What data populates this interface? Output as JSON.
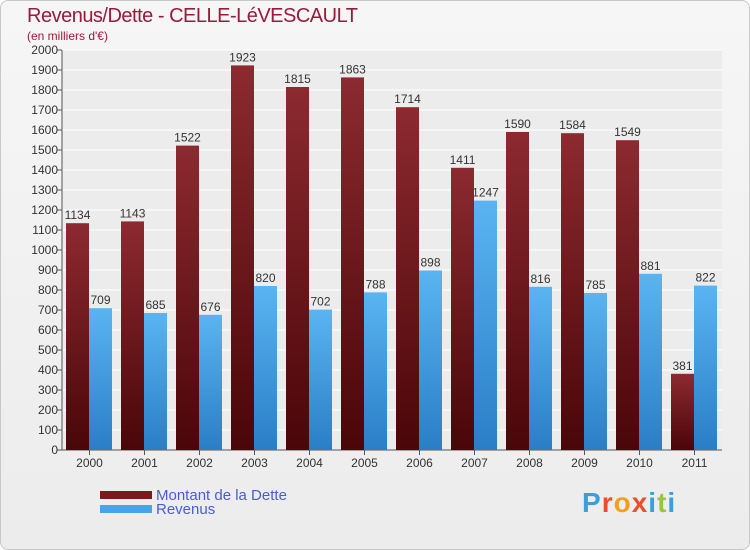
{
  "title": "Revenus/Dette - CELLE-LéVESCAULT",
  "subtitle": "(en milliers d'€)",
  "brand": {
    "letters": [
      "P",
      "r",
      "o",
      "x",
      "i",
      "t",
      "i"
    ],
    "colors": [
      "#3aa0dc",
      "#e8502a",
      "#f2a01c",
      "#e8502a",
      "#3aa0dc",
      "#9bc63b",
      "#3aa0dc"
    ]
  },
  "chart_data": {
    "type": "bar",
    "title": "Revenus/Dette - CELLE-LéVESCAULT",
    "ylabel": "(en milliers d'€)",
    "categories": [
      "2000",
      "2001",
      "2002",
      "2003",
      "2004",
      "2005",
      "2006",
      "2007",
      "2008",
      "2009",
      "2010",
      "2011"
    ],
    "series": [
      {
        "name": "Montant de la Dette",
        "color": "#7a1a1e",
        "values": [
          1134,
          1143,
          1522,
          1923,
          1815,
          1863,
          1714,
          1411,
          1590,
          1584,
          1549,
          381
        ]
      },
      {
        "name": "Revenus",
        "color": "#4aa3e6",
        "values": [
          709,
          685,
          676,
          820,
          702,
          788,
          898,
          1247,
          816,
          785,
          881,
          822
        ]
      }
    ],
    "ylim": [
      0,
      2000
    ],
    "ytick_step": 100,
    "grid": true,
    "legend_position": "bottom-left"
  }
}
